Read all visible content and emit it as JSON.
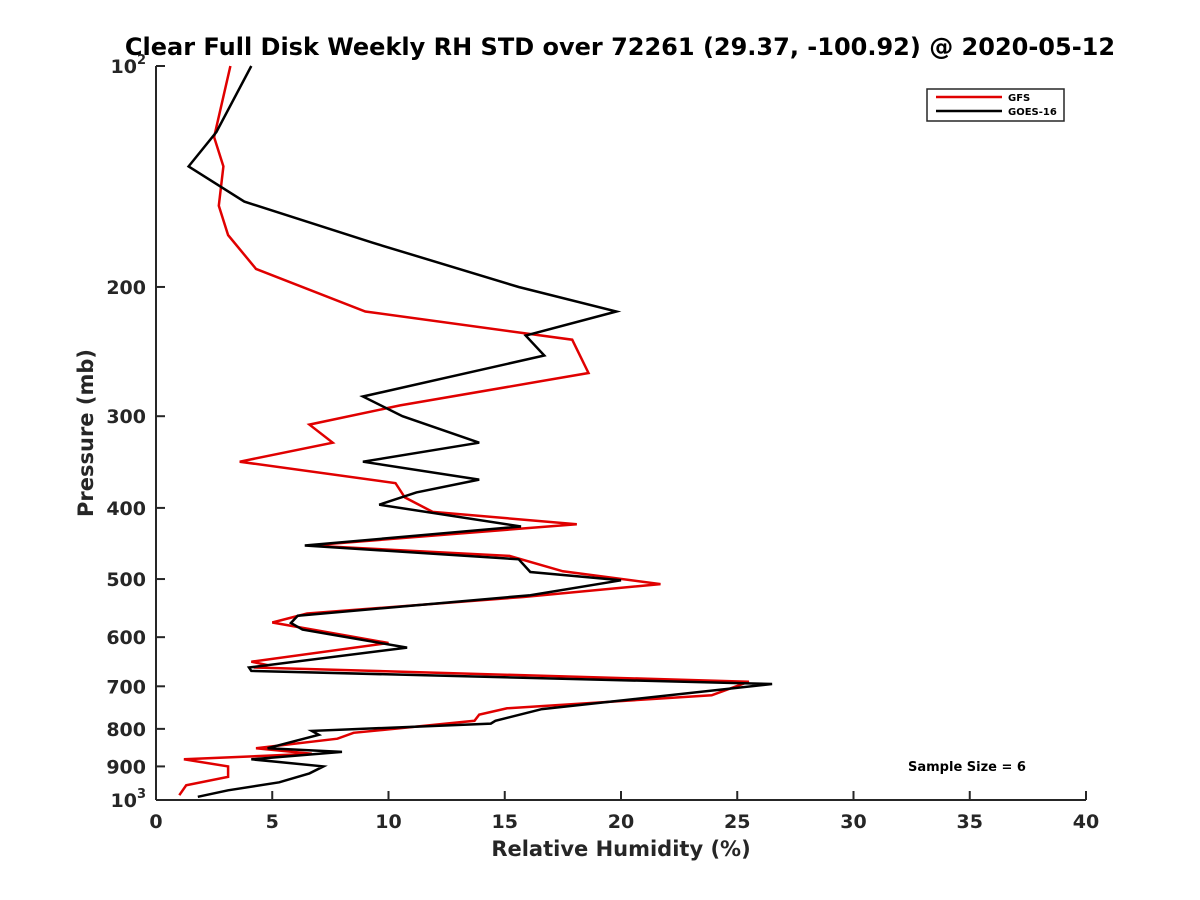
{
  "chart_data": {
    "type": "line",
    "title": "Clear Full Disk Weekly RH STD over 72261 (29.37, -100.92) @ 2020-05-12",
    "xlabel": "Relative Humidity (%)",
    "ylabel": "Pressure (mb)",
    "xlim": [
      0,
      40
    ],
    "ylim": [
      100,
      1000
    ],
    "yscale": "log",
    "y_reversed": true,
    "x_ticks": [
      "0",
      "5",
      "10",
      "15",
      "20",
      "25",
      "30",
      "35",
      "40"
    ],
    "y_ticks": [
      {
        "value": 100,
        "base": "10",
        "exp": "2"
      },
      {
        "value": 200,
        "label": "200"
      },
      {
        "value": 300,
        "label": "300"
      },
      {
        "value": 400,
        "label": "400"
      },
      {
        "value": 500,
        "label": "500"
      },
      {
        "value": 600,
        "label": "600"
      },
      {
        "value": 700,
        "label": "700"
      },
      {
        "value": 800,
        "label": "800"
      },
      {
        "value": 900,
        "label": "900"
      },
      {
        "value": 1000,
        "base": "10",
        "exp": "3"
      }
    ],
    "legend_position": "top-right",
    "grid": false,
    "annotation": "Sample Size = 6",
    "series": [
      {
        "name": "GFS",
        "color": "#e00000",
        "x": [
          3.2,
          2.5,
          2.9,
          2.7,
          3.1,
          4.3,
          9.0,
          17.9,
          18.6,
          10.5,
          6.6,
          7.6,
          3.6,
          10.3,
          10.7,
          11.9,
          18.1,
          6.6,
          15.2,
          17.5,
          21.7,
          15.8,
          6.5,
          5.0,
          10.0,
          4.1,
          4.8,
          4.2,
          25.5,
          23.9,
          15.1,
          13.9,
          13.7,
          8.5,
          7.8,
          4.3,
          6.7,
          1.2,
          3.1,
          3.1,
          1.3,
          1.0
        ],
        "y": [
          100,
          125,
          137,
          155,
          170,
          189,
          216,
          236,
          262,
          290,
          308,
          326,
          346,
          370,
          387,
          405,
          421,
          450,
          465,
          488,
          508,
          529,
          557,
          573,
          611,
          648,
          655,
          660,
          690,
          720,
          750,
          765,
          780,
          810,
          825,
          850,
          865,
          880,
          900,
          930,
          955,
          985
        ]
      },
      {
        "name": "GOES-16",
        "color": "#000000",
        "x": [
          4.1,
          2.6,
          1.4,
          3.8,
          9.3,
          15.6,
          19.8,
          15.9,
          16.7,
          8.9,
          10.6,
          13.9,
          8.9,
          13.9,
          11.2,
          9.6,
          15.7,
          6.4,
          15.6,
          16.1,
          20.0,
          16.1,
          6.1,
          5.8,
          6.3,
          10.8,
          4.0,
          4.1,
          26.5,
          16.6,
          14.6,
          14.4,
          6.7,
          7.0,
          4.8,
          8.0,
          4.1,
          7.2,
          6.6,
          5.3,
          3.1,
          1.8
        ],
        "y": [
          100,
          123,
          137,
          153,
          174,
          200,
          216,
          233,
          248,
          282,
          300,
          326,
          346,
          366,
          381,
          396,
          424,
          450,
          470,
          489,
          502,
          526,
          561,
          574,
          586,
          620,
          660,
          667,
          695,
          752,
          780,
          787,
          805,
          815,
          850,
          860,
          880,
          900,
          920,
          946,
          970,
          990
        ]
      }
    ]
  }
}
